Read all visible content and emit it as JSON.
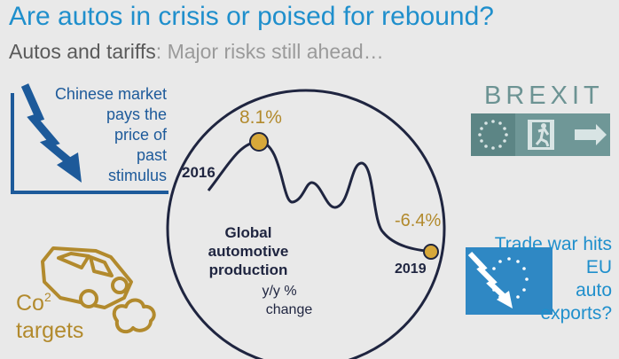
{
  "title": "Are autos in crisis or poised for rebound?",
  "subtitle": {
    "lead": "Autos and tariffs",
    "rest": ": Major risks still ahead…"
  },
  "china": {
    "lines": [
      "Chinese market",
      "pays the",
      "price of",
      "past",
      "stimulus"
    ]
  },
  "chart": {
    "peak_label": "8.1%",
    "trough_label": "-6.4%",
    "start_year": "2016",
    "end_year": "2019",
    "caption_bold": [
      "Global",
      "automotive",
      "production"
    ],
    "caption_normal": [
      "y/y %",
      "change"
    ]
  },
  "brexit": {
    "word": "BREXIT"
  },
  "trade_war": {
    "lines": [
      "Trade war hits",
      "EU",
      "auto",
      "exports?"
    ]
  },
  "co2": {
    "base": "Co",
    "superscript": "2",
    "line2": "targets"
  },
  "colors": {
    "title_blue": "#1f8fcc",
    "dark_navy": "#1f2540",
    "gold": "#b28a2d",
    "brexit_teal": "#6c9393",
    "eu_blue": "#2f88c4",
    "china_blue": "#1d5a9a"
  },
  "icons": [
    "downtrend-arrow-icon",
    "eu-flag-exit-sign-icon",
    "eu-flag-downtrend-icon",
    "car-exhaust-icon"
  ]
}
